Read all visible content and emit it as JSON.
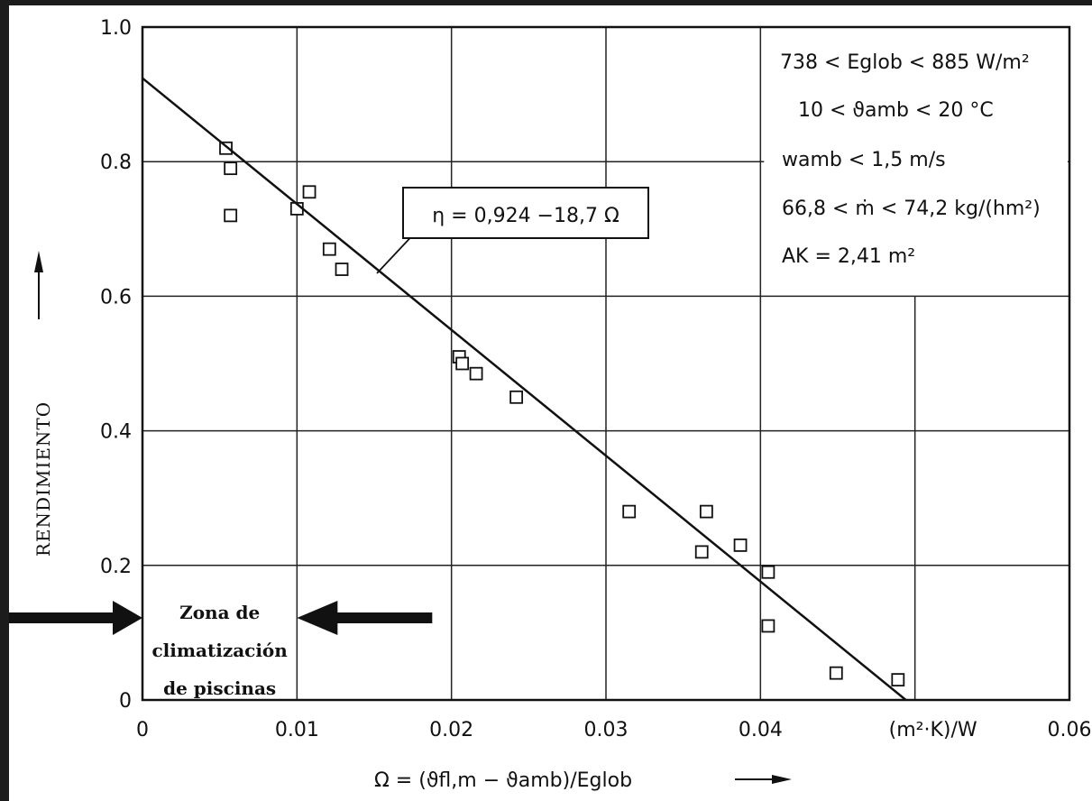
{
  "chart_data": {
    "type": "scatter",
    "xlabel": "Ω = (ϑfl,m − ϑamb)/Eglob",
    "ylabel": "RENDIMIENTO",
    "x_unit": "(m²·K)/W",
    "xlim": [
      0,
      0.06
    ],
    "ylim": [
      0,
      1.0
    ],
    "x_ticks": [
      "0",
      "0.01",
      "0.02",
      "0.03",
      "0.04",
      "(m²·K)/W",
      "0.06"
    ],
    "y_ticks": [
      "0",
      "0.2",
      "0.4",
      "0.6",
      "0.8",
      "1.0"
    ],
    "grid": true,
    "points": [
      [
        0.0054,
        0.82
      ],
      [
        0.0057,
        0.79
      ],
      [
        0.0057,
        0.72
      ],
      [
        0.01,
        0.73
      ],
      [
        0.0108,
        0.755
      ],
      [
        0.0121,
        0.67
      ],
      [
        0.0129,
        0.64
      ],
      [
        0.0205,
        0.51
      ],
      [
        0.0207,
        0.5
      ],
      [
        0.0216,
        0.485
      ],
      [
        0.0242,
        0.45
      ],
      [
        0.0315,
        0.28
      ],
      [
        0.0362,
        0.22
      ],
      [
        0.0365,
        0.28
      ],
      [
        0.0387,
        0.23
      ],
      [
        0.0405,
        0.19
      ],
      [
        0.0405,
        0.11
      ],
      [
        0.0449,
        0.04
      ],
      [
        0.0489,
        0.03
      ]
    ],
    "fit_line": {
      "intercept": 0.924,
      "slope": -18.7,
      "label": "η = 0,924 −18,7 Ω"
    },
    "conditions": [
      "738 < Eglob < 885 W/m²",
      "10 < ϑamb < 20 °C",
      "wamb < 1,5 m/s",
      "66,8 < ṁ < 74,2 kg/(hm²)",
      "AK = 2,41 m²"
    ],
    "zone_label": [
      "Zona de",
      "climatización",
      "de piscinas"
    ],
    "zone_range": [
      0,
      0.01
    ]
  },
  "colors": {
    "frame": "#1c1c1c",
    "ink": "#111111",
    "paper": "#ffffff"
  }
}
